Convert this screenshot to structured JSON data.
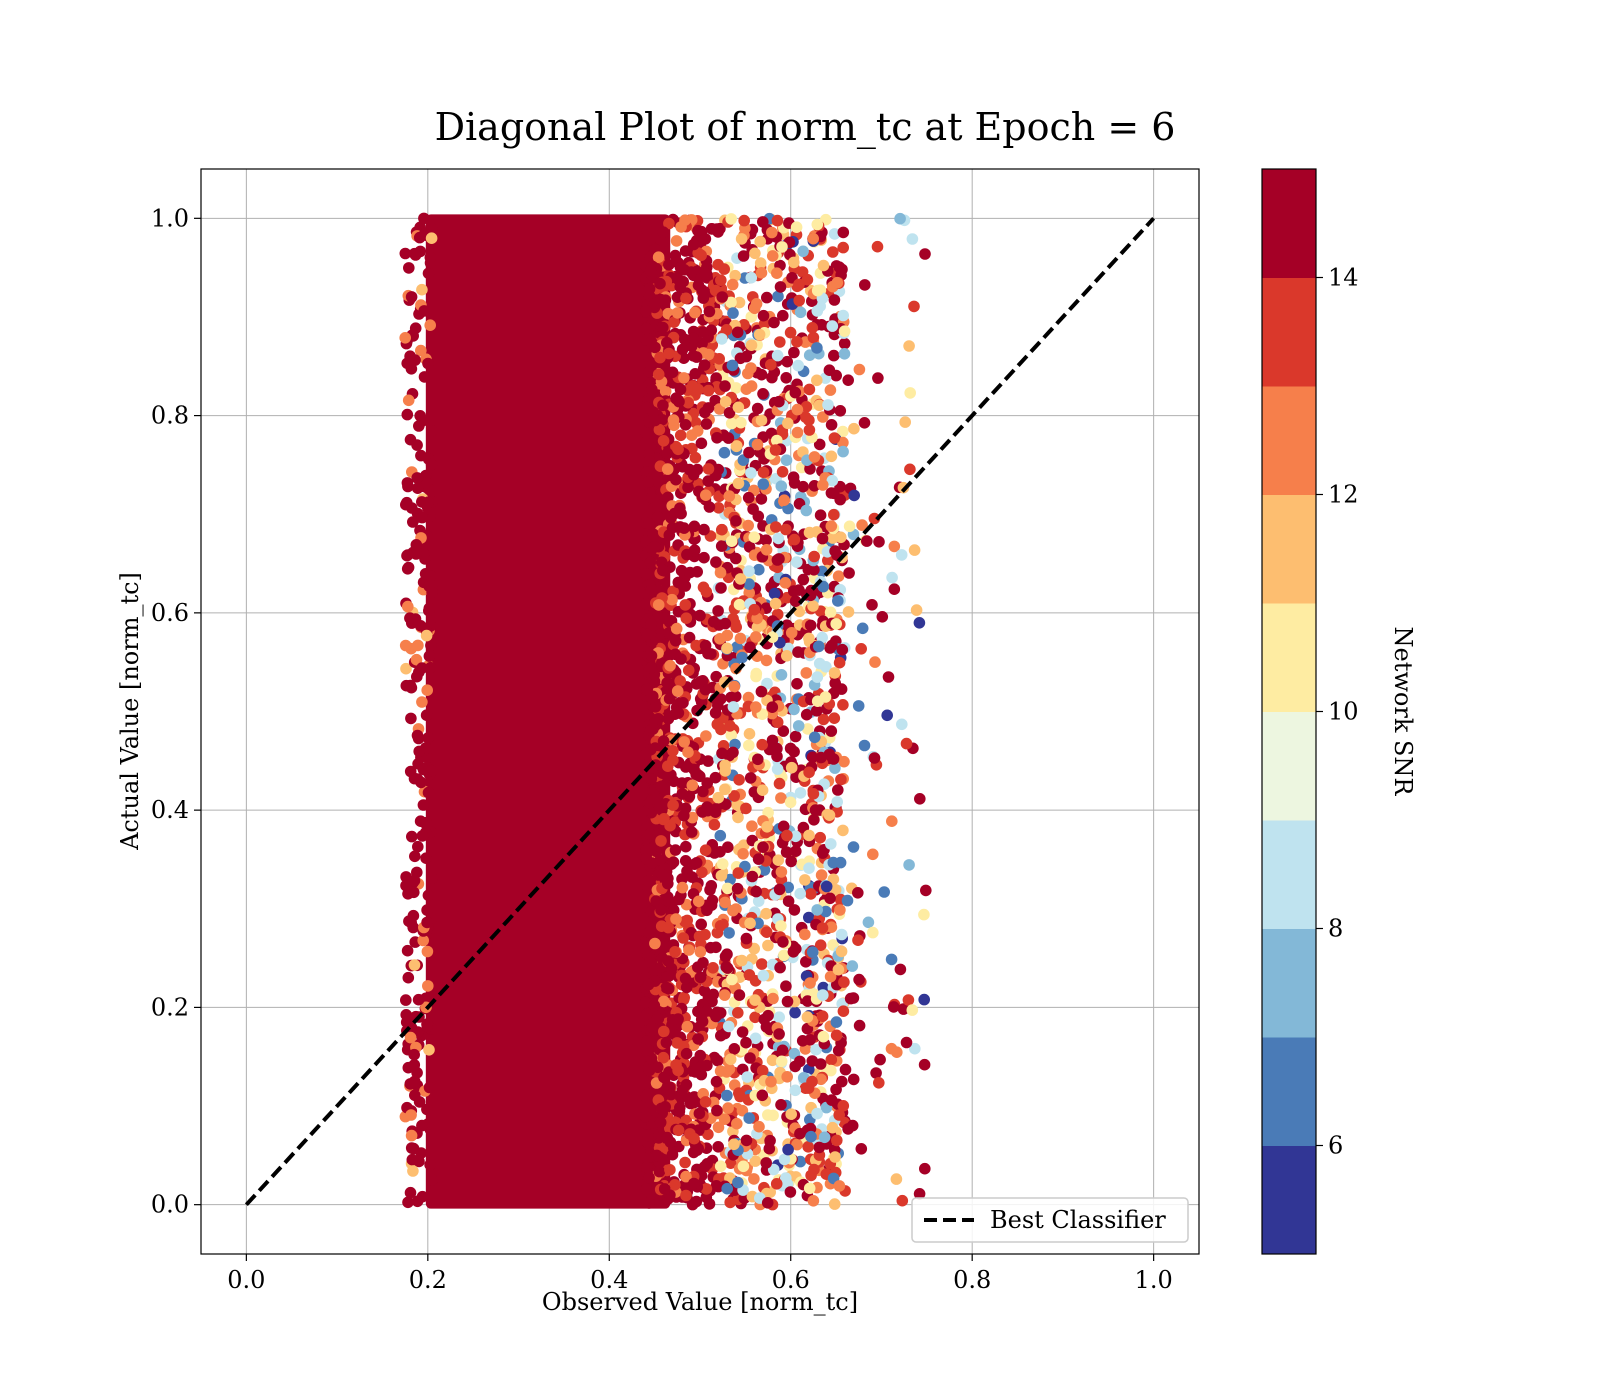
{
  "chart_data": {
    "type": "scatter",
    "title": "Diagonal Plot of norm_tc at Epoch = 6",
    "xlabel": "Observed Value [norm_tc]",
    "ylabel": "Actual Value [norm_tc]",
    "xlim": [
      -0.05,
      1.05
    ],
    "ylim": [
      -0.05,
      1.05
    ],
    "xticks": [
      0.0,
      0.2,
      0.4,
      0.6,
      0.8,
      1.0
    ],
    "xtick_labels": [
      "0.0",
      "0.2",
      "0.4",
      "0.6",
      "0.8",
      "1.0"
    ],
    "yticks": [
      0.0,
      0.2,
      0.4,
      0.6,
      0.8,
      1.0
    ],
    "ytick_labels": [
      "0.0",
      "0.2",
      "0.4",
      "0.6",
      "0.8",
      "1.0"
    ],
    "grid": true,
    "dense_region": {
      "x_range": [
        0.2,
        0.5
      ],
      "y_range": [
        0.0,
        1.0
      ],
      "snr_band": "high (>=14)"
    },
    "scatter_x_range": [
      0.15,
      0.75
    ],
    "scatter_y_range": [
      0.0,
      1.0
    ],
    "reference_line": {
      "label": "Best Classifier",
      "x": [
        0.0,
        1.0
      ],
      "y": [
        0.0,
        1.0
      ],
      "style": "dashed",
      "color": "#000000"
    },
    "legend": {
      "entries": [
        "Best Classifier"
      ],
      "position": "lower-right"
    },
    "colorbar": {
      "label": "Network SNR",
      "range": [
        5,
        15
      ],
      "ticks": [
        6,
        8,
        10,
        12,
        14
      ],
      "tick_labels": [
        "6",
        "8",
        "10",
        "12",
        "14"
      ],
      "boundaries": [
        5,
        6,
        7,
        8,
        9,
        10,
        11,
        12,
        13,
        14,
        15
      ],
      "colors": [
        "#313695",
        "#4a7bb7",
        "#83b8d7",
        "#bfe3ef",
        "#edf6e0",
        "#feeca2",
        "#fdbe70",
        "#f67f4b",
        "#da382b",
        "#a50026"
      ]
    }
  }
}
